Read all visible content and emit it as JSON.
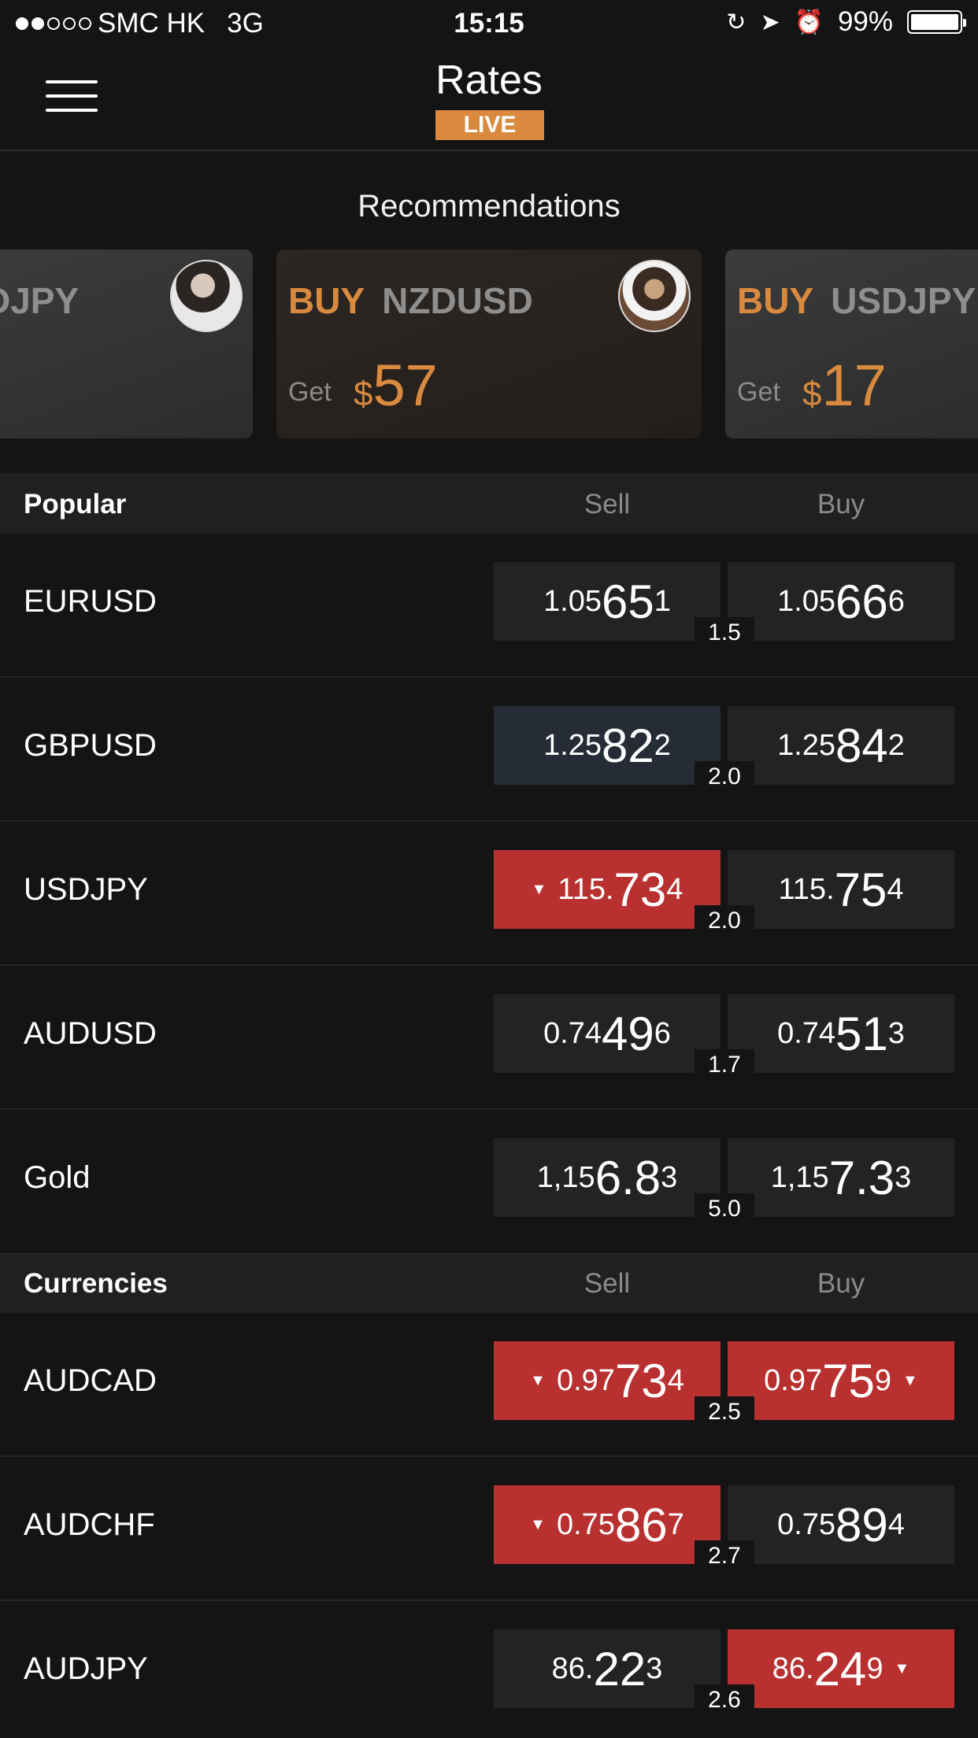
{
  "status_bar": {
    "carrier": "SMC HK",
    "network": "3G",
    "time": "15:15",
    "battery": "99%"
  },
  "header": {
    "title": "Rates",
    "badge": "LIVE"
  },
  "recommendations": {
    "title": "Recommendations",
    "cards": [
      {
        "action": "",
        "symbol": "DJPY",
        "get": "",
        "currency": "",
        "amount": ""
      },
      {
        "action": "BUY",
        "symbol": "NZDUSD",
        "get": "Get",
        "currency": "$",
        "amount": "57"
      },
      {
        "action": "BUY",
        "symbol": "USDJPY",
        "get": "Get",
        "currency": "$",
        "amount": "17"
      }
    ]
  },
  "popular": {
    "label": "Popular",
    "sell_label": "Sell",
    "buy_label": "Buy",
    "rows": [
      {
        "symbol": "EURUSD",
        "spread": "1.5",
        "sell": {
          "pre": "1.05",
          "big": "65",
          "post": "1"
        },
        "buy": {
          "pre": "1.05",
          "big": "66",
          "post": "6"
        }
      },
      {
        "symbol": "GBPUSD",
        "spread": "2.0",
        "sell": {
          "pre": "1.25",
          "big": "82",
          "post": "2"
        },
        "buy": {
          "pre": "1.25",
          "big": "84",
          "post": "2"
        }
      },
      {
        "symbol": "USDJPY",
        "spread": "2.0",
        "sell": {
          "pre": "115.",
          "big": "73",
          "post": "4"
        },
        "buy": {
          "pre": "115.",
          "big": "75",
          "post": "4"
        }
      },
      {
        "symbol": "AUDUSD",
        "spread": "1.7",
        "sell": {
          "pre": "0.74",
          "big": "49",
          "post": "6"
        },
        "buy": {
          "pre": "0.74",
          "big": "51",
          "post": "3"
        }
      },
      {
        "symbol": "Gold",
        "spread": "5.0",
        "sell": {
          "pre": "1,15",
          "big": "6.8",
          "post": "3"
        },
        "buy": {
          "pre": "1,15",
          "big": "7.3",
          "post": "3"
        }
      }
    ]
  },
  "currencies": {
    "label": "Currencies",
    "sell_label": "Sell",
    "buy_label": "Buy",
    "rows": [
      {
        "symbol": "AUDCAD",
        "spread": "2.5",
        "sell": {
          "pre": "0.97",
          "big": "73",
          "post": "4"
        },
        "buy": {
          "pre": "0.97",
          "big": "75",
          "post": "9"
        }
      },
      {
        "symbol": "AUDCHF",
        "spread": "2.7",
        "sell": {
          "pre": "0.75",
          "big": "86",
          "post": "7"
        },
        "buy": {
          "pre": "0.75",
          "big": "89",
          "post": "4"
        }
      },
      {
        "symbol": "AUDJPY",
        "spread": "2.6",
        "sell": {
          "pre": "86.",
          "big": "22",
          "post": "3"
        },
        "buy": {
          "pre": "86.",
          "big": "24",
          "post": "9"
        }
      }
    ]
  },
  "icons": {
    "menu": "hamburger-menu-icon",
    "rotation_lock": "rotation-lock-icon",
    "location": "location-arrow-icon",
    "alarm": "alarm-clock-icon",
    "down": "down-triangle-icon"
  },
  "colors": {
    "accent": "#d98a3e",
    "price_down": "#b8302f",
    "price_highlight": "#252c35",
    "background": "#141414"
  }
}
